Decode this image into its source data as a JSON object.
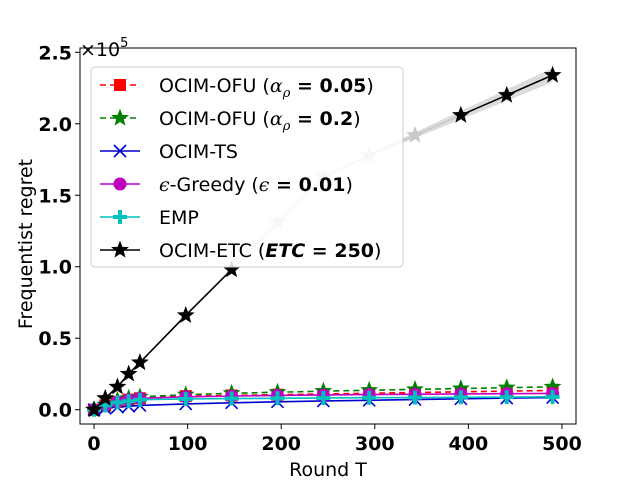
{
  "chart_data": {
    "type": "line",
    "title": "",
    "xlabel": "Round T",
    "ylabel": "Frequentist regret",
    "xlim": [
      -15,
      515
    ],
    "ylim": [
      -0.1,
      2.53
    ],
    "x_ticks": [
      0,
      100,
      200,
      300,
      400,
      500
    ],
    "x_tick_labels": [
      "0",
      "100",
      "200",
      "300",
      "400",
      "500"
    ],
    "y_ticks": [
      0.0,
      0.5,
      1.0,
      1.5,
      2.0,
      2.5
    ],
    "y_tick_labels": [
      "0.0",
      "0.5",
      "1.0",
      "1.5",
      "2.0",
      "2.5"
    ],
    "y_offset_label": "×10",
    "y_offset_exp": "5",
    "legend_position": "upper-left",
    "grid": false,
    "x": [
      0,
      12,
      25,
      37,
      49,
      98,
      147,
      196,
      245,
      294,
      343,
      392,
      441,
      490
    ],
    "series": [
      {
        "name": "OCIM-OFU (αρ = 0.05)",
        "legend_main": "OCIM-OFU (",
        "legend_sym": "α",
        "legend_sub": "ρ",
        "legend_mid": " = ",
        "legend_val": "0.05",
        "legend_end": ")",
        "color": "#ff0000",
        "dash": "6,4",
        "marker": "square",
        "values": [
          0.0,
          0.03,
          0.055,
          0.07,
          0.08,
          0.095,
          0.1,
          0.105,
          0.11,
          0.115,
          0.12,
          0.125,
          0.13,
          0.135
        ]
      },
      {
        "name": "OCIM-OFU (αρ = 0.2)",
        "legend_main": "OCIM-OFU (",
        "legend_sym": "α",
        "legend_sub": "ρ",
        "legend_mid": " = ",
        "legend_val": "0.2",
        "legend_end": ")",
        "color": "#008000",
        "dash": "6,4",
        "marker": "star",
        "values": [
          0.0,
          0.035,
          0.065,
          0.08,
          0.09,
          0.105,
          0.115,
          0.122,
          0.13,
          0.136,
          0.142,
          0.148,
          0.154,
          0.16
        ]
      },
      {
        "name": "OCIM-TS",
        "legend_main": "OCIM-TS",
        "color": "#0000cc",
        "dash": "",
        "marker": "x",
        "values": [
          0.0,
          0.01,
          0.018,
          0.024,
          0.03,
          0.04,
          0.048,
          0.055,
          0.061,
          0.066,
          0.071,
          0.076,
          0.081,
          0.085
        ]
      },
      {
        "name": "ϵ-Greedy (ϵ = 0.01)",
        "legend_main": "-Greedy (",
        "legend_sym": "ϵ",
        "legend_sym2": "ϵ",
        "legend_mid": " = ",
        "legend_val": "0.01",
        "legend_end": ")",
        "color": "#c000c0",
        "dash": "",
        "marker": "circle",
        "values": [
          0.0,
          0.03,
          0.055,
          0.07,
          0.08,
          0.09,
          0.095,
          0.1,
          0.103,
          0.106,
          0.108,
          0.11,
          0.112,
          0.114
        ]
      },
      {
        "name": "EMP",
        "legend_main": "EMP",
        "color": "#00bfbf",
        "dash": "",
        "marker": "plus",
        "values": [
          0.0,
          0.03,
          0.05,
          0.06,
          0.07,
          0.075,
          0.078,
          0.08,
          0.082,
          0.084,
          0.085,
          0.087,
          0.088,
          0.09
        ]
      },
      {
        "name": "OCIM-ETC (ETC = 250)",
        "legend_main": "OCIM-ETC (",
        "legend_sym": "ETC",
        "legend_mid": " = ",
        "legend_val": "250",
        "legend_end": ")",
        "color": "#000000",
        "dash": "",
        "marker": "star",
        "band": true,
        "band_halfwidth": [
          0.0,
          0.0,
          0.0,
          0.0,
          0.0,
          0.0,
          0.0,
          0.0,
          0.005,
          0.01,
          0.02,
          0.03,
          0.04,
          0.05
        ],
        "faded_indices": [
          7,
          8,
          9,
          10
        ],
        "values": [
          0.0,
          0.08,
          0.16,
          0.25,
          0.33,
          0.66,
          0.98,
          1.31,
          1.63,
          1.78,
          1.92,
          2.06,
          2.2,
          2.34
        ]
      }
    ]
  }
}
